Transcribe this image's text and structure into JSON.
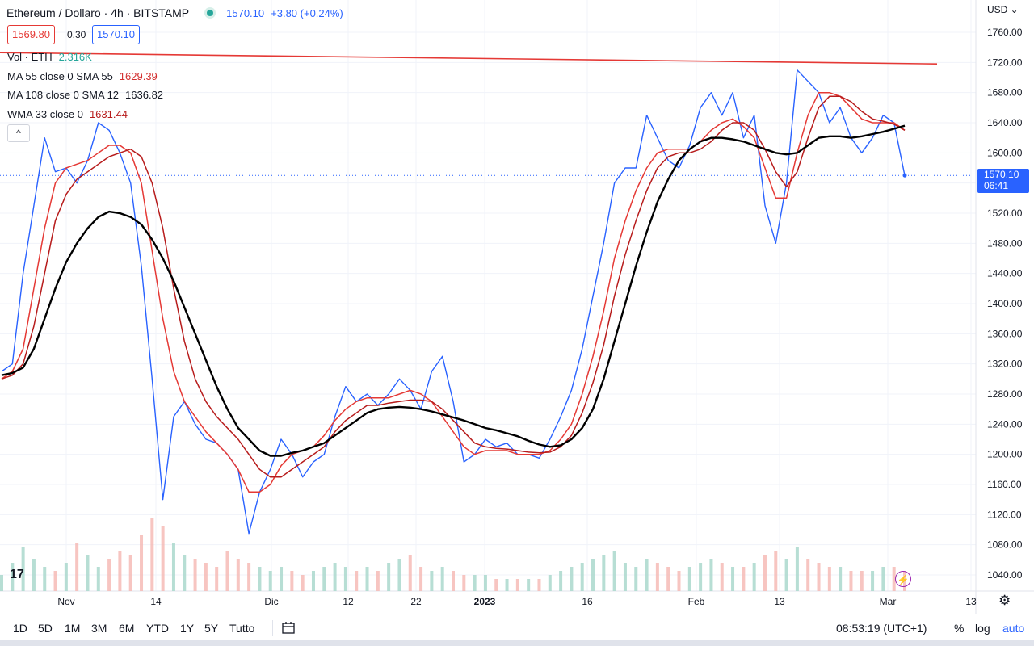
{
  "header": {
    "symbol": "Ethereum / Dollaro · 4h · BITSTAMP",
    "last_price": "1570.10",
    "change": "+3.80 (+0.24%)",
    "bid": "1569.80",
    "spread": "0.30",
    "ask": "1570.10"
  },
  "indicators": [
    {
      "label": "Vol · ETH",
      "value": "2.316K",
      "color": "#26a69a"
    },
    {
      "label": "MA 55 close 0 SMA 55",
      "value": "1629.39",
      "color": "#d32f2f"
    },
    {
      "label": "MA 108 close 0 SMA 12",
      "value": "1636.82",
      "color": "#131722"
    },
    {
      "label": "WMA 33 close 0",
      "value": "1631.44",
      "color": "#b71c1c"
    }
  ],
  "collapse_icon": "^",
  "price_axis": {
    "currency": "USD",
    "labels": [
      "1760.00",
      "1720.00",
      "1680.00",
      "1640.00",
      "1600.00",
      "1560.00",
      "1520.00",
      "1480.00",
      "1440.00",
      "1400.00",
      "1360.00",
      "1320.00",
      "1280.00",
      "1240.00",
      "1200.00",
      "1160.00",
      "1120.00",
      "1080.00",
      "1040.00"
    ],
    "last_tag_price": "1570.10",
    "last_tag_time": "06:41"
  },
  "time_axis": {
    "labels": [
      "Nov",
      "14",
      "Dic",
      "12",
      "22",
      "2023",
      "16",
      "Feb",
      "13",
      "Mar",
      "13"
    ],
    "bold_label": "2023"
  },
  "toolbar": {
    "timeframes": [
      "1D",
      "5D",
      "1M",
      "3M",
      "6M",
      "YTD",
      "1Y",
      "5Y",
      "Tutto"
    ],
    "clock": "08:53:19 (UTC+1)",
    "percent": "%",
    "log": "log",
    "auto": "auto"
  },
  "logo_text": "17",
  "icons": {
    "calendar": "calendar-range-icon",
    "settings": "gear-icon",
    "bolt": "lightning-icon",
    "currency_dropdown": "chevron-down-icon"
  },
  "colors": {
    "price_line": "#2962ff",
    "ma_red": "#e53935",
    "ma_dark_red": "#b71c1c",
    "ma_black": "#000000",
    "trendline": "#e53935",
    "vol_up": "#a5d6c9",
    "vol_down": "#f5b7b1"
  },
  "chart_data": {
    "type": "line",
    "title": "Ethereum / Dollaro · 4h · BITSTAMP",
    "ylim": [
      1030,
      1780
    ],
    "y_ticks": [
      1760,
      1720,
      1680,
      1640,
      1600,
      1560,
      1520,
      1480,
      1440,
      1400,
      1360,
      1320,
      1280,
      1240,
      1200,
      1160,
      1120,
      1080,
      1040
    ],
    "x_ticks": [
      "Nov",
      "14",
      "Dic",
      "12",
      "22",
      "2023",
      "16",
      "Feb",
      "13",
      "Mar",
      "13"
    ],
    "x": [
      "Oct 26",
      "Oct 27",
      "Oct 28",
      "Oct 29",
      "Oct 30",
      "Oct 31",
      "Nov 1",
      "Nov 2",
      "Nov 3",
      "Nov 4",
      "Nov 5",
      "Nov 6",
      "Nov 7",
      "Nov 8",
      "Nov 9",
      "Nov 10",
      "Nov 11",
      "Nov 12",
      "Nov 13",
      "Nov 14",
      "Nov 15",
      "Nov 16",
      "Nov 17",
      "Nov 18",
      "Nov 19",
      "Nov 20",
      "Nov 21",
      "Nov 22",
      "Nov 23",
      "Nov 24",
      "Nov 25",
      "Nov 27",
      "Nov 29",
      "Dec 1",
      "Dec 3",
      "Dec 5",
      "Dec 7",
      "Dec 9",
      "Dec 11",
      "Dec 13",
      "Dec 14",
      "Dec 15",
      "Dec 16",
      "Dec 17",
      "Dec 19",
      "Dec 21",
      "Dec 23",
      "Dec 25",
      "Dec 27",
      "Dec 29",
      "Dec 31",
      "Jan 2",
      "Jan 4",
      "Jan 6",
      "Jan 8",
      "Jan 10",
      "Jan 12",
      "Jan 14",
      "Jan 15",
      "Jan 17",
      "Jan 19",
      "Jan 21",
      "Jan 23",
      "Jan 25",
      "Jan 27",
      "Jan 29",
      "Jan 31",
      "Feb 2",
      "Feb 4",
      "Feb 6",
      "Feb 8",
      "Feb 10",
      "Feb 11",
      "Feb 13",
      "Feb 14",
      "Feb 16",
      "Feb 18",
      "Feb 20",
      "Feb 22",
      "Feb 24",
      "Feb 26",
      "Feb 28",
      "Mar 1",
      "Mar 3",
      "Mar 4"
    ],
    "series": [
      {
        "name": "ETH/USD",
        "color": "#2962ff",
        "width": 1.4,
        "values": [
          1310,
          1320,
          1440,
          1530,
          1620,
          1575,
          1580,
          1560,
          1590,
          1640,
          1630,
          1600,
          1560,
          1450,
          1300,
          1140,
          1250,
          1270,
          1240,
          1220,
          1215,
          1200,
          1180,
          1095,
          1150,
          1180,
          1220,
          1200,
          1170,
          1190,
          1200,
          1250,
          1290,
          1270,
          1280,
          1265,
          1280,
          1300,
          1285,
          1260,
          1310,
          1330,
          1270,
          1190,
          1200,
          1220,
          1210,
          1215,
          1200,
          1200,
          1195,
          1220,
          1250,
          1285,
          1340,
          1410,
          1480,
          1560,
          1580,
          1580,
          1650,
          1620,
          1590,
          1580,
          1610,
          1660,
          1680,
          1650,
          1680,
          1620,
          1650,
          1530,
          1480,
          1560,
          1710,
          1695,
          1680,
          1640,
          1660,
          1620,
          1600,
          1620,
          1650,
          1640,
          1570
        ]
      },
      {
        "name": "WMA 33",
        "color": "#e53935",
        "width": 1.5,
        "values": [
          1300,
          1310,
          1340,
          1420,
          1500,
          1560,
          1580,
          1585,
          1590,
          1600,
          1610,
          1610,
          1600,
          1560,
          1470,
          1380,
          1310,
          1270,
          1250,
          1230,
          1215,
          1200,
          1180,
          1150,
          1150,
          1160,
          1185,
          1200,
          1205,
          1210,
          1225,
          1245,
          1260,
          1270,
          1275,
          1275,
          1275,
          1280,
          1285,
          1280,
          1270,
          1250,
          1230,
          1210,
          1200,
          1205,
          1205,
          1205,
          1200,
          1200,
          1200,
          1205,
          1220,
          1240,
          1280,
          1330,
          1390,
          1460,
          1510,
          1550,
          1580,
          1600,
          1605,
          1605,
          1605,
          1615,
          1630,
          1640,
          1645,
          1635,
          1620,
          1580,
          1540,
          1540,
          1600,
          1650,
          1680,
          1680,
          1675,
          1660,
          1645,
          1640,
          1640,
          1640,
          1630
        ]
      },
      {
        "name": "MA 55",
        "color": "#b71c1c",
        "width": 1.5,
        "values": [
          1300,
          1305,
          1320,
          1370,
          1440,
          1510,
          1545,
          1565,
          1575,
          1585,
          1595,
          1600,
          1605,
          1595,
          1560,
          1500,
          1420,
          1350,
          1300,
          1270,
          1250,
          1235,
          1220,
          1200,
          1180,
          1170,
          1170,
          1180,
          1190,
          1200,
          1210,
          1230,
          1245,
          1255,
          1265,
          1265,
          1268,
          1270,
          1272,
          1272,
          1270,
          1260,
          1245,
          1230,
          1215,
          1210,
          1208,
          1207,
          1205,
          1203,
          1202,
          1203,
          1210,
          1225,
          1255,
          1295,
          1345,
          1410,
          1465,
          1510,
          1550,
          1580,
          1595,
          1600,
          1600,
          1605,
          1615,
          1630,
          1640,
          1640,
          1630,
          1605,
          1575,
          1555,
          1575,
          1620,
          1660,
          1675,
          1675,
          1668,
          1655,
          1645,
          1642,
          1638,
          1630
        ]
      },
      {
        "name": "MA 108",
        "color": "#000000",
        "width": 2.4,
        "values": [
          1305,
          1308,
          1315,
          1340,
          1380,
          1420,
          1455,
          1480,
          1500,
          1515,
          1522,
          1520,
          1515,
          1505,
          1485,
          1460,
          1430,
          1395,
          1360,
          1325,
          1290,
          1260,
          1235,
          1220,
          1205,
          1198,
          1198,
          1202,
          1205,
          1210,
          1215,
          1225,
          1235,
          1245,
          1255,
          1260,
          1262,
          1263,
          1262,
          1260,
          1257,
          1253,
          1249,
          1245,
          1240,
          1235,
          1232,
          1228,
          1224,
          1218,
          1213,
          1210,
          1212,
          1220,
          1235,
          1260,
          1300,
          1350,
          1400,
          1450,
          1495,
          1535,
          1565,
          1590,
          1605,
          1615,
          1620,
          1620,
          1618,
          1615,
          1610,
          1605,
          1600,
          1598,
          1600,
          1610,
          1620,
          1622,
          1622,
          1620,
          1622,
          1625,
          1628,
          1632,
          1636
        ]
      }
    ],
    "trendline": {
      "from": [
        "Oct 26",
        1733
      ],
      "to": [
        "Mar 13",
        1718
      ],
      "color": "#e53935"
    },
    "last_price_line": 1570.1,
    "volume": {
      "name": "Vol · ETH",
      "units": "K ETH",
      "values": [
        20,
        35,
        55,
        40,
        30,
        25,
        35,
        60,
        45,
        30,
        40,
        50,
        45,
        70,
        90,
        80,
        60,
        45,
        40,
        35,
        30,
        50,
        40,
        35,
        30,
        25,
        30,
        25,
        20,
        25,
        30,
        35,
        30,
        25,
        30,
        25,
        35,
        40,
        45,
        30,
        25,
        30,
        25,
        20,
        20,
        20,
        15,
        15,
        15,
        15,
        15,
        20,
        25,
        30,
        35,
        40,
        45,
        50,
        35,
        30,
        40,
        35,
        30,
        25,
        30,
        35,
        40,
        35,
        30,
        30,
        35,
        45,
        50,
        40,
        55,
        40,
        35,
        30,
        30,
        25,
        25,
        25,
        30,
        30,
        25
      ]
    }
  }
}
